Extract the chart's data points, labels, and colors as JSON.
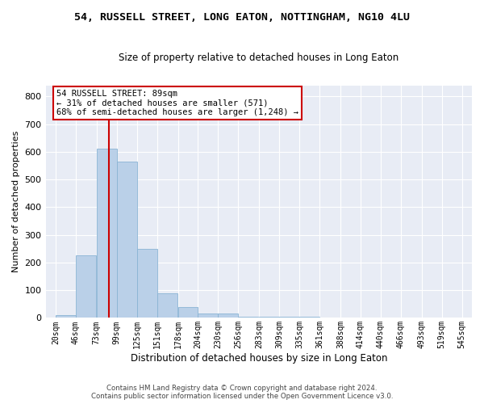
{
  "title": "54, RUSSELL STREET, LONG EATON, NOTTINGHAM, NG10 4LU",
  "subtitle": "Size of property relative to detached houses in Long Eaton",
  "xlabel": "Distribution of detached houses by size in Long Eaton",
  "ylabel": "Number of detached properties",
  "bar_color": "#bad0e8",
  "bar_edge_color": "#8ab4d4",
  "background_color": "#e8ecf5",
  "grid_color": "#ffffff",
  "vline_x": 89,
  "vline_color": "#cc0000",
  "annotation_text": "54 RUSSELL STREET: 89sqm\n← 31% of detached houses are smaller (571)\n68% of semi-detached houses are larger (1,248) →",
  "annotation_box_color": "#ffffff",
  "annotation_box_edge": "#cc0000",
  "bins_left": [
    20,
    46,
    73,
    99,
    125,
    151,
    178,
    204,
    230,
    256,
    283,
    309,
    335,
    361,
    388,
    414,
    440,
    466,
    493,
    519
  ],
  "bin_width": 26,
  "bar_heights": [
    10,
    225,
    610,
    565,
    250,
    90,
    40,
    17,
    17,
    5,
    3,
    3,
    5,
    0,
    0,
    0,
    0,
    0,
    0,
    0
  ],
  "ylim": [
    0,
    840
  ],
  "xlim": [
    7,
    558
  ],
  "yticks": [
    0,
    100,
    200,
    300,
    400,
    500,
    600,
    700,
    800
  ],
  "xtick_positions": [
    20,
    46,
    73,
    99,
    125,
    151,
    178,
    204,
    230,
    256,
    283,
    309,
    335,
    361,
    388,
    414,
    440,
    466,
    493,
    519,
    545
  ],
  "xtick_labels": [
    "20sqm",
    "46sqm",
    "73sqm",
    "99sqm",
    "125sqm",
    "151sqm",
    "178sqm",
    "204sqm",
    "230sqm",
    "256sqm",
    "283sqm",
    "309sqm",
    "335sqm",
    "361sqm",
    "388sqm",
    "414sqm",
    "440sqm",
    "466sqm",
    "493sqm",
    "519sqm",
    "545sqm"
  ],
  "footer_line1": "Contains HM Land Registry data © Crown copyright and database right 2024.",
  "footer_line2": "Contains public sector information licensed under the Open Government Licence v3.0."
}
